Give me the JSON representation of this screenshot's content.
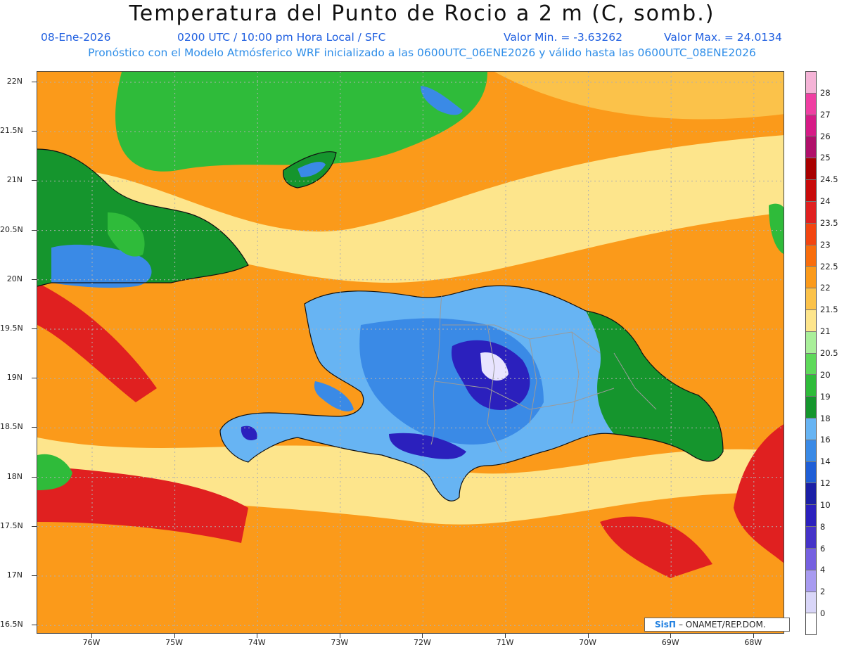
{
  "header": {
    "title": "Temperatura del Punto de Rocio a 2 m (C, somb.)",
    "date": "08-Ene-2026",
    "time": "0200 UTC / 10:00 pm Hora Local / SFC",
    "min_value": "Valor Min. = -3.63262",
    "max_value": "Valor Max. = 24.0134",
    "description": "Pronóstico con el Modelo Atmósferico WRF inicializado a las 0600UTC_06ENE2026 y válido hasta las  0600UTC_08ENE2026"
  },
  "axes": {
    "lat_labels": [
      "22N",
      "21.5N",
      "21N",
      "20.5N",
      "20N",
      "19.5N",
      "19N",
      "18.5N",
      "18N",
      "17.5N",
      "17N",
      "16.5N"
    ],
    "lon_labels": [
      "76W",
      "75W",
      "74W",
      "73W",
      "72W",
      "71W",
      "70W",
      "69W",
      "68W"
    ]
  },
  "colorbar": {
    "labels": [
      "28",
      "27",
      "26",
      "25",
      "24.5",
      "24",
      "23.5",
      "23",
      "22.5",
      "22",
      "21.5",
      "21",
      "20.5",
      "20",
      "19",
      "18",
      "16",
      "14",
      "12",
      "10",
      "8",
      "6",
      "4",
      "2",
      "0"
    ],
    "colors": [
      "#f5b4d7",
      "#ef3fa2",
      "#d61b86",
      "#b0106a",
      "#a90000",
      "#c80b0b",
      "#e02020",
      "#f24510",
      "#f86d0c",
      "#fb9a1a",
      "#fbc24a",
      "#fde58c",
      "#a9ef9a",
      "#5ed95a",
      "#2fbb3a",
      "#15952d",
      "#67b4f3",
      "#3a8ae6",
      "#1f5ed6",
      "#1b1fa6",
      "#2b20bd",
      "#4533c8",
      "#7560e0",
      "#a89bf0",
      "#d9d6f8",
      "#ffffff"
    ]
  },
  "field_colors": {
    "sea_warm": "#fb9a1a",
    "sea_mild": "#fbc24a",
    "sea_cool": "#fde58c",
    "sea_hot": "#e02020",
    "land_green": "#2fbb3a",
    "land_dark_green": "#15952d",
    "land_blue": "#3a8ae6",
    "land_light_blue": "#67b4f3",
    "mountain_violet": "#2b20bd",
    "mountain_white": "#e8e4ff"
  },
  "credit": {
    "logo": "SisΠ",
    "text": "– ONAMET/REP.DOM."
  }
}
